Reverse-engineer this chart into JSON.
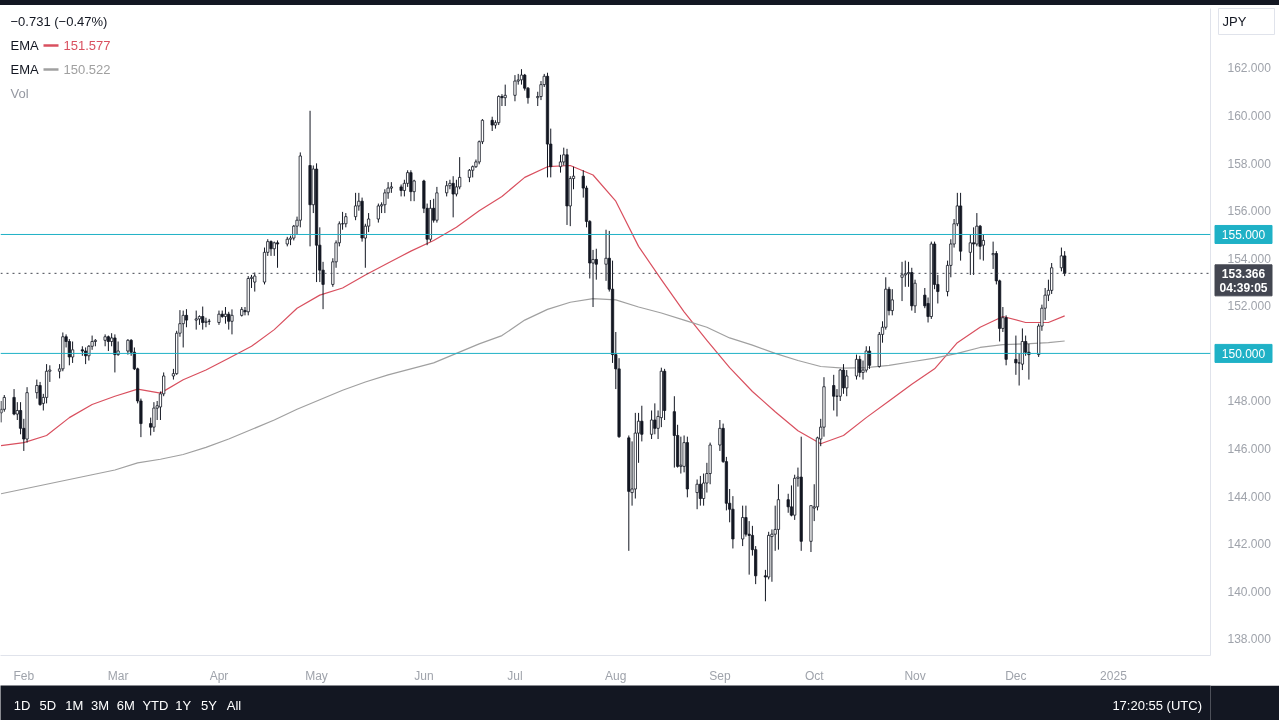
{
  "chart_data": {
    "type": "candlestick",
    "ylabel": "JPY",
    "x": [
      "2024-01-25",
      "2024-01-26",
      "2024-01-29",
      "2024-01-30",
      "2024-01-31",
      "2024-02-01",
      "2024-02-02",
      "2024-02-05",
      "2024-02-06",
      "2024-02-07",
      "2024-02-08",
      "2024-02-09",
      "2024-02-12",
      "2024-02-13",
      "2024-02-14",
      "2024-02-15",
      "2024-02-16",
      "2024-02-19",
      "2024-02-20",
      "2024-02-21",
      "2024-02-22",
      "2024-02-23",
      "2024-02-26",
      "2024-02-27",
      "2024-02-28",
      "2024-02-29",
      "2024-03-01",
      "2024-03-04",
      "2024-03-05",
      "2024-03-06",
      "2024-03-07",
      "2024-03-08",
      "2024-03-11",
      "2024-03-12",
      "2024-03-13",
      "2024-03-14",
      "2024-03-15",
      "2024-03-18",
      "2024-03-19",
      "2024-03-20",
      "2024-03-21",
      "2024-03-22",
      "2024-03-25",
      "2024-03-26",
      "2024-03-27",
      "2024-03-28",
      "2024-03-29",
      "2024-04-01",
      "2024-04-02",
      "2024-04-03",
      "2024-04-04",
      "2024-04-05",
      "2024-04-08",
      "2024-04-09",
      "2024-04-10",
      "2024-04-11",
      "2024-04-12",
      "2024-04-15",
      "2024-04-16",
      "2024-04-17",
      "2024-04-18",
      "2024-04-19",
      "2024-04-22",
      "2024-04-23",
      "2024-04-24",
      "2024-04-25",
      "2024-04-26",
      "2024-04-29",
      "2024-04-30",
      "2024-05-01",
      "2024-05-02",
      "2024-05-03",
      "2024-05-06",
      "2024-05-07",
      "2024-05-08",
      "2024-05-09",
      "2024-05-10",
      "2024-05-13",
      "2024-05-14",
      "2024-05-15",
      "2024-05-16",
      "2024-05-17",
      "2024-05-20",
      "2024-05-21",
      "2024-05-22",
      "2024-05-23",
      "2024-05-24",
      "2024-05-27",
      "2024-05-28",
      "2024-05-29",
      "2024-05-30",
      "2024-05-31",
      "2024-06-03",
      "2024-06-04",
      "2024-06-05",
      "2024-06-06",
      "2024-06-07",
      "2024-06-10",
      "2024-06-11",
      "2024-06-12",
      "2024-06-13",
      "2024-06-14",
      "2024-06-17",
      "2024-06-18",
      "2024-06-19",
      "2024-06-20",
      "2024-06-21",
      "2024-06-24",
      "2024-06-25",
      "2024-06-26",
      "2024-06-27",
      "2024-06-28",
      "2024-07-01",
      "2024-07-02",
      "2024-07-03",
      "2024-07-04",
      "2024-07-05",
      "2024-07-08",
      "2024-07-09",
      "2024-07-10",
      "2024-07-11",
      "2024-07-12",
      "2024-07-15",
      "2024-07-16",
      "2024-07-17",
      "2024-07-18",
      "2024-07-19",
      "2024-07-22",
      "2024-07-23",
      "2024-07-24",
      "2024-07-25",
      "2024-07-26",
      "2024-07-29",
      "2024-07-30",
      "2024-07-31",
      "2024-08-01",
      "2024-08-02",
      "2024-08-05",
      "2024-08-06",
      "2024-08-07",
      "2024-08-08",
      "2024-08-09",
      "2024-08-12",
      "2024-08-13",
      "2024-08-14",
      "2024-08-15",
      "2024-08-16",
      "2024-08-19",
      "2024-08-20",
      "2024-08-21",
      "2024-08-22",
      "2024-08-23",
      "2024-08-26",
      "2024-08-27",
      "2024-08-28",
      "2024-08-29",
      "2024-08-30",
      "2024-09-02",
      "2024-09-03",
      "2024-09-04",
      "2024-09-05",
      "2024-09-06",
      "2024-09-09",
      "2024-09-10",
      "2024-09-11",
      "2024-09-12",
      "2024-09-13",
      "2024-09-16",
      "2024-09-17",
      "2024-09-18",
      "2024-09-19",
      "2024-09-20",
      "2024-09-23",
      "2024-09-24",
      "2024-09-25",
      "2024-09-26",
      "2024-09-27",
      "2024-09-30",
      "2024-10-01",
      "2024-10-02",
      "2024-10-03",
      "2024-10-04",
      "2024-10-07",
      "2024-10-08",
      "2024-10-09",
      "2024-10-10",
      "2024-10-11",
      "2024-10-14",
      "2024-10-15",
      "2024-10-16",
      "2024-10-17",
      "2024-10-18",
      "2024-10-21",
      "2024-10-22",
      "2024-10-23",
      "2024-10-24",
      "2024-10-25",
      "2024-10-28",
      "2024-10-29",
      "2024-10-30",
      "2024-10-31",
      "2024-11-01",
      "2024-11-04",
      "2024-11-05",
      "2024-11-06",
      "2024-11-07",
      "2024-11-08",
      "2024-11-11",
      "2024-11-12",
      "2024-11-13",
      "2024-11-14",
      "2024-11-15",
      "2024-11-18",
      "2024-11-19",
      "2024-11-20",
      "2024-11-21",
      "2024-11-22",
      "2024-11-25",
      "2024-11-26",
      "2024-11-27",
      "2024-11-28",
      "2024-11-29",
      "2024-12-02",
      "2024-12-03",
      "2024-12-04",
      "2024-12-05",
      "2024-12-06",
      "2024-12-09",
      "2024-12-10",
      "2024-12-11",
      "2024-12-12",
      "2024-12-13",
      "2024-12-16",
      "2024-12-17"
    ],
    "ohlc": [
      [
        147.5,
        148.0,
        147.1,
        147.65
      ],
      [
        147.65,
        148.25,
        147.55,
        148.15
      ],
      [
        148.15,
        148.5,
        147.4,
        147.45
      ],
      [
        147.45,
        147.95,
        147.2,
        147.6
      ],
      [
        147.6,
        147.95,
        146.6,
        146.85
      ],
      [
        146.85,
        147.25,
        145.9,
        146.4
      ],
      [
        146.4,
        148.58,
        146.25,
        148.35
      ],
      [
        148.35,
        148.9,
        148.1,
        148.65
      ],
      [
        148.65,
        148.8,
        147.8,
        147.85
      ],
      [
        147.9,
        148.3,
        147.6,
        148.15
      ],
      [
        148.15,
        149.55,
        147.9,
        149.25
      ],
      [
        149.25,
        149.5,
        148.8,
        149.3
      ],
      [
        149.25,
        149.55,
        148.95,
        149.35
      ],
      [
        149.35,
        150.88,
        149.25,
        150.7
      ],
      [
        150.7,
        150.8,
        150.25,
        150.5
      ],
      [
        150.5,
        150.6,
        149.5,
        149.85
      ],
      [
        149.85,
        150.5,
        149.6,
        150.15
      ],
      [
        150.15,
        150.3,
        149.9,
        150.1
      ],
      [
        150.1,
        150.25,
        149.55,
        149.9
      ],
      [
        149.9,
        150.35,
        149.7,
        150.3
      ],
      [
        150.3,
        150.75,
        150.15,
        150.5
      ],
      [
        150.5,
        150.6,
        150.3,
        150.55
      ],
      [
        150.55,
        150.8,
        150.3,
        150.7
      ],
      [
        150.7,
        150.75,
        150.1,
        150.5
      ],
      [
        150.5,
        150.85,
        150.3,
        150.65
      ],
      [
        150.65,
        150.8,
        149.2,
        149.95
      ],
      [
        149.95,
        150.5,
        149.9,
        150.1
      ],
      [
        150.1,
        150.6,
        149.95,
        150.55
      ],
      [
        150.55,
        150.6,
        149.9,
        150.05
      ],
      [
        150.05,
        150.25,
        149.3,
        149.35
      ],
      [
        149.35,
        149.4,
        147.9,
        148.0
      ],
      [
        148.0,
        148.1,
        146.48,
        147.05
      ],
      [
        147.05,
        147.3,
        146.55,
        146.9
      ],
      [
        146.9,
        147.95,
        146.7,
        147.7
      ],
      [
        147.7,
        148.0,
        147.2,
        147.8
      ],
      [
        147.75,
        148.4,
        147.2,
        148.3
      ],
      [
        148.3,
        149.2,
        148.2,
        149.05
      ],
      [
        149.05,
        149.35,
        148.9,
        149.15
      ],
      [
        149.15,
        150.95,
        149.1,
        150.85
      ],
      [
        150.85,
        151.82,
        150.7,
        151.25
      ],
      [
        151.25,
        151.8,
        150.25,
        151.6
      ],
      [
        151.6,
        151.86,
        151.1,
        151.4
      ],
      [
        151.4,
        151.8,
        151.0,
        151.45
      ],
      [
        151.45,
        151.6,
        151.2,
        151.55
      ],
      [
        151.55,
        151.97,
        151.0,
        151.3
      ],
      [
        151.3,
        151.5,
        151.1,
        151.35
      ],
      [
        151.35,
        151.45,
        151.2,
        151.35
      ],
      [
        151.3,
        151.8,
        151.2,
        151.65
      ],
      [
        151.65,
        151.8,
        151.5,
        151.55
      ],
      [
        151.55,
        151.95,
        151.25,
        151.65
      ],
      [
        151.65,
        151.75,
        151.0,
        151.35
      ],
      [
        151.35,
        151.85,
        150.8,
        151.6
      ],
      [
        151.6,
        151.95,
        151.55,
        151.85
      ],
      [
        151.8,
        151.95,
        151.6,
        151.75
      ],
      [
        151.75,
        153.25,
        151.6,
        153.15
      ],
      [
        153.15,
        153.3,
        152.75,
        153.2
      ],
      [
        153.0,
        153.4,
        152.6,
        153.25
      ],
      [
        153.0,
        154.45,
        152.9,
        154.25
      ],
      [
        154.25,
        154.8,
        154.1,
        154.7
      ],
      [
        154.7,
        154.75,
        154.1,
        154.4
      ],
      [
        154.4,
        154.7,
        154.1,
        154.65
      ],
      [
        154.65,
        154.75,
        153.6,
        154.6
      ],
      [
        154.6,
        154.9,
        154.5,
        154.8
      ],
      [
        154.8,
        154.95,
        154.55,
        154.85
      ],
      [
        154.85,
        155.4,
        154.75,
        155.35
      ],
      [
        155.35,
        155.75,
        155.0,
        155.6
      ],
      [
        155.6,
        158.45,
        155.3,
        158.3
      ],
      [
        157.9,
        160.2,
        154.5,
        156.25
      ],
      [
        156.25,
        157.9,
        155.9,
        157.75
      ],
      [
        157.75,
        157.99,
        153.0,
        154.55
      ],
      [
        154.55,
        155.3,
        153.0,
        153.5
      ],
      [
        153.5,
        153.85,
        151.86,
        152.9
      ],
      [
        152.9,
        154.0,
        152.8,
        153.85
      ],
      [
        153.85,
        154.75,
        153.6,
        154.65
      ],
      [
        154.65,
        155.55,
        154.5,
        155.45
      ],
      [
        155.45,
        155.95,
        155.2,
        155.45
      ],
      [
        155.45,
        155.9,
        155.3,
        155.75
      ],
      [
        155.75,
        156.75,
        155.6,
        156.2
      ],
      [
        156.2,
        156.75,
        156.0,
        156.4
      ],
      [
        156.4,
        156.55,
        154.7,
        154.85
      ],
      [
        154.85,
        155.45,
        153.6,
        155.35
      ],
      [
        155.35,
        155.9,
        155.1,
        155.65
      ],
      [
        155.65,
        156.3,
        155.5,
        156.2
      ],
      [
        156.2,
        156.35,
        155.9,
        156.25
      ],
      [
        156.25,
        156.9,
        155.9,
        156.75
      ],
      [
        156.75,
        157.2,
        156.5,
        156.95
      ],
      [
        156.95,
        157.2,
        156.75,
        157.0
      ],
      [
        157.0,
        157.1,
        156.6,
        156.85
      ],
      [
        156.85,
        157.3,
        156.6,
        157.15
      ],
      [
        157.15,
        157.7,
        157.0,
        157.6
      ],
      [
        157.6,
        157.7,
        156.4,
        156.8
      ],
      [
        156.8,
        157.3,
        156.4,
        157.25
      ],
      [
        157.25,
        157.3,
        155.9,
        156.1
      ],
      [
        156.1,
        156.3,
        154.55,
        154.8
      ],
      [
        154.8,
        156.45,
        154.7,
        156.1
      ],
      [
        156.1,
        156.5,
        155.5,
        155.6
      ],
      [
        155.6,
        157.0,
        155.5,
        156.75
      ],
      [
        156.75,
        157.25,
        156.6,
        157.05
      ],
      [
        157.05,
        157.3,
        156.9,
        157.15
      ],
      [
        157.15,
        157.45,
        155.72,
        156.7
      ],
      [
        156.7,
        157.3,
        156.6,
        157.0
      ],
      [
        157.0,
        158.25,
        156.9,
        157.4
      ],
      [
        157.4,
        157.75,
        157.2,
        157.7
      ],
      [
        157.7,
        157.9,
        157.4,
        157.85
      ],
      [
        157.85,
        158.15,
        157.8,
        158.05
      ],
      [
        158.05,
        158.95,
        157.95,
        158.9
      ],
      [
        158.9,
        159.85,
        158.8,
        159.8
      ],
      [
        159.8,
        159.95,
        159.35,
        159.6
      ],
      [
        159.6,
        159.8,
        159.45,
        159.7
      ],
      [
        159.7,
        160.85,
        159.6,
        160.8
      ],
      [
        160.8,
        160.9,
        160.4,
        160.75
      ],
      [
        160.75,
        161.3,
        160.4,
        160.85
      ],
      [
        160.85,
        161.7,
        160.6,
        161.45
      ],
      [
        161.45,
        161.75,
        161.3,
        161.5
      ],
      [
        161.5,
        161.95,
        161.3,
        161.7
      ],
      [
        161.7,
        161.75,
        161.05,
        161.15
      ],
      [
        161.15,
        161.2,
        160.5,
        160.75
      ],
      [
        160.75,
        161.0,
        160.4,
        160.8
      ],
      [
        160.8,
        161.45,
        160.65,
        161.3
      ],
      [
        161.3,
        161.75,
        161.2,
        161.65
      ],
      [
        161.65,
        161.8,
        157.4,
        158.8
      ],
      [
        158.8,
        159.45,
        157.4,
        157.85
      ],
      [
        157.85,
        158.35,
        157.6,
        158.05
      ],
      [
        158.05,
        158.65,
        157.9,
        158.35
      ],
      [
        158.35,
        158.6,
        155.4,
        156.2
      ],
      [
        156.2,
        157.45,
        155.35,
        157.35
      ],
      [
        157.35,
        157.85,
        156.9,
        157.45
      ],
      [
        157.45,
        157.7,
        156.55,
        156.95
      ],
      [
        156.95,
        157.05,
        155.3,
        155.55
      ],
      [
        155.55,
        155.6,
        153.15,
        153.8
      ],
      [
        153.8,
        154.35,
        151.95,
        153.95
      ],
      [
        153.95,
        154.4,
        153.1,
        153.75
      ],
      [
        153.75,
        155.2,
        153.05,
        154.0
      ],
      [
        154.0,
        155.15,
        152.6,
        152.7
      ],
      [
        152.7,
        153.9,
        149.6,
        149.95
      ],
      [
        149.95,
        150.9,
        148.5,
        149.35
      ],
      [
        149.35,
        149.8,
        146.45,
        146.5
      ],
      [
        146.45,
        146.55,
        141.7,
        144.2
      ],
      [
        144.15,
        146.3,
        143.6,
        144.3
      ],
      [
        144.3,
        147.5,
        143.9,
        146.65
      ],
      [
        146.65,
        147.5,
        145.4,
        147.15
      ],
      [
        147.15,
        147.8,
        146.3,
        146.6
      ],
      [
        146.6,
        147.6,
        146.4,
        147.2
      ],
      [
        147.2,
        147.9,
        146.6,
        146.85
      ],
      [
        146.85,
        147.6,
        146.4,
        147.35
      ],
      [
        147.3,
        149.4,
        146.9,
        149.25
      ],
      [
        149.25,
        149.35,
        147.2,
        147.6
      ],
      [
        147.55,
        148.2,
        145.2,
        146.55
      ],
      [
        146.55,
        147.0,
        145.2,
        145.25
      ],
      [
        145.25,
        146.5,
        144.95,
        145.3
      ],
      [
        145.25,
        146.55,
        145.0,
        146.25
      ],
      [
        146.25,
        146.5,
        143.95,
        144.3
      ],
      [
        144.15,
        144.7,
        143.45,
        144.5
      ],
      [
        144.5,
        144.85,
        143.6,
        143.9
      ],
      [
        143.9,
        144.95,
        143.6,
        144.55
      ],
      [
        144.55,
        145.4,
        144.15,
        144.95
      ],
      [
        144.95,
        146.25,
        144.5,
        146.15
      ],
      [
        146.15,
        147.2,
        145.9,
        146.85
      ],
      [
        146.85,
        147.05,
        145.4,
        145.45
      ],
      [
        145.45,
        145.65,
        143.4,
        143.7
      ],
      [
        143.7,
        144.3,
        142.9,
        143.45
      ],
      [
        143.45,
        144.0,
        141.8,
        142.2
      ],
      [
        142.2,
        143.6,
        141.9,
        143.1
      ],
      [
        143.1,
        143.6,
        142.3,
        142.4
      ],
      [
        142.4,
        142.95,
        140.7,
        142.35
      ],
      [
        142.35,
        142.75,
        141.5,
        141.75
      ],
      [
        141.75,
        141.9,
        140.3,
        140.65
      ],
      [
        140.65,
        140.9,
        139.58,
        140.6
      ],
      [
        140.6,
        142.5,
        140.5,
        142.35
      ],
      [
        142.3,
        142.6,
        140.4,
        142.4
      ],
      [
        142.4,
        143.6,
        141.7,
        142.6
      ],
      [
        142.6,
        144.5,
        141.75,
        143.85
      ],
      [
        143.85,
        144.1,
        143.3,
        143.55
      ],
      [
        143.55,
        144.45,
        143.15,
        143.2
      ],
      [
        143.2,
        144.9,
        143.0,
        144.75
      ],
      [
        144.75,
        145.2,
        144.4,
        144.8
      ],
      [
        144.8,
        146.5,
        141.7,
        142.1
      ],
      [
        142.1,
        143.6,
        141.65,
        143.6
      ],
      [
        143.5,
        144.5,
        142.95,
        143.55
      ],
      [
        143.55,
        146.5,
        143.4,
        146.45
      ],
      [
        146.4,
        147.25,
        146.1,
        146.9
      ],
      [
        146.9,
        149.0,
        146.5,
        148.6
      ],
      [
        148.65,
        149.1,
        147.6,
        148.2
      ],
      [
        148.2,
        148.5,
        147.35,
        148.2
      ],
      [
        148.2,
        149.35,
        148.0,
        149.3
      ],
      [
        149.3,
        149.55,
        148.3,
        148.55
      ],
      [
        148.55,
        149.3,
        148.2,
        149.05
      ],
      [
        149.05,
        149.95,
        148.9,
        149.75
      ],
      [
        149.75,
        149.9,
        149.0,
        149.2
      ],
      [
        149.2,
        149.7,
        148.9,
        149.3
      ],
      [
        149.3,
        150.3,
        149.2,
        150.1
      ],
      [
        150.1,
        150.3,
        149.35,
        149.5
      ],
      [
        149.45,
        150.9,
        149.4,
        150.8
      ],
      [
        150.8,
        151.35,
        150.45,
        151.1
      ],
      [
        151.1,
        153.2,
        151.0,
        152.7
      ],
      [
        152.7,
        152.8,
        151.6,
        151.8
      ],
      [
        151.8,
        152.7,
        151.6,
        152.25
      ],
      [
        153.2,
        153.85,
        152.2,
        153.3
      ],
      [
        153.3,
        153.9,
        152.8,
        153.35
      ],
      [
        153.35,
        153.85,
        152.8,
        153.4
      ],
      [
        153.4,
        153.6,
        151.8,
        152.0
      ],
      [
        152.0,
        153.1,
        151.7,
        152.95
      ],
      [
        152.45,
        152.75,
        151.9,
        152.0
      ],
      [
        152.1,
        152.35,
        151.3,
        151.55
      ],
      [
        151.55,
        154.7,
        151.45,
        154.6
      ],
      [
        154.6,
        154.7,
        152.7,
        152.9
      ],
      [
        152.9,
        153.3,
        152.1,
        152.6
      ],
      [
        152.6,
        153.9,
        152.4,
        153.7
      ],
      [
        153.7,
        154.8,
        153.2,
        154.6
      ],
      [
        154.6,
        155.65,
        154.45,
        155.45
      ],
      [
        155.45,
        156.75,
        155.35,
        156.2
      ],
      [
        156.2,
        156.75,
        153.9,
        154.3
      ],
      [
        154.25,
        155.0,
        153.3,
        154.65
      ],
      [
        154.65,
        155.3,
        153.3,
        154.6
      ],
      [
        154.6,
        155.9,
        154.5,
        155.35
      ],
      [
        155.35,
        155.4,
        153.95,
        154.5
      ],
      [
        154.55,
        155.0,
        153.9,
        154.75
      ],
      [
        154.15,
        154.7,
        153.55,
        154.2
      ],
      [
        154.2,
        154.3,
        152.9,
        153.05
      ],
      [
        153.05,
        153.1,
        150.5,
        151.05
      ],
      [
        151.05,
        151.95,
        150.9,
        151.5
      ],
      [
        151.5,
        151.6,
        149.5,
        149.75
      ],
      [
        149.75,
        150.75,
        149.1,
        149.6
      ],
      [
        149.6,
        150.0,
        148.65,
        149.6
      ],
      [
        149.55,
        151.05,
        149.3,
        150.5
      ],
      [
        150.5,
        150.75,
        149.9,
        150.05
      ],
      [
        150.05,
        150.4,
        148.9,
        149.95
      ],
      [
        149.95,
        151.25,
        149.85,
        151.15
      ],
      [
        151.15,
        152.05,
        150.95,
        151.9
      ],
      [
        151.9,
        152.75,
        151.4,
        152.45
      ],
      [
        152.45,
        153.1,
        152.2,
        152.65
      ],
      [
        152.65,
        153.8,
        152.5,
        153.6
      ],
      [
        153.6,
        154.45,
        153.45,
        154.1
      ],
      [
        154.1,
        154.3,
        153.25,
        153.366
      ]
    ],
    "series": [
      {
        "name": "EMA",
        "type": "line",
        "color": "#d9505f",
        "x": [
          "2024-01-25",
          "2024-02-01",
          "2024-02-08",
          "2024-02-15",
          "2024-02-22",
          "2024-02-29",
          "2024-03-07",
          "2024-03-14",
          "2024-03-21",
          "2024-03-28",
          "2024-04-04",
          "2024-04-11",
          "2024-04-18",
          "2024-04-25",
          "2024-05-02",
          "2024-05-09",
          "2024-05-16",
          "2024-05-23",
          "2024-05-30",
          "2024-06-06",
          "2024-06-13",
          "2024-06-20",
          "2024-06-27",
          "2024-07-04",
          "2024-07-11",
          "2024-07-18",
          "2024-07-25",
          "2024-08-01",
          "2024-08-08",
          "2024-08-15",
          "2024-08-22",
          "2024-08-29",
          "2024-09-05",
          "2024-09-12",
          "2024-09-19",
          "2024-09-26",
          "2024-10-03",
          "2024-10-10",
          "2024-10-17",
          "2024-10-24",
          "2024-10-31",
          "2024-11-07",
          "2024-11-14",
          "2024-11-21",
          "2024-11-28",
          "2024-12-05",
          "2024-12-12",
          "2024-12-17"
        ],
        "values": [
          146.12,
          146.25,
          146.55,
          147.3,
          147.85,
          148.2,
          148.5,
          148.33,
          148.89,
          149.3,
          149.8,
          150.3,
          151.0,
          151.9,
          152.45,
          152.75,
          153.3,
          153.8,
          154.3,
          154.75,
          155.3,
          156.0,
          156.6,
          157.4,
          157.85,
          157.9,
          157.5,
          156.4,
          154.5,
          153.1,
          151.75,
          150.55,
          149.4,
          148.4,
          147.55,
          146.75,
          146.2,
          146.55,
          147.3,
          148.0,
          148.7,
          149.35,
          150.45,
          151.1,
          151.55,
          151.3,
          151.3,
          151.577
        ]
      },
      {
        "name": "EMA",
        "type": "line",
        "color": "#a0a0a0",
        "x": [
          "2024-01-25",
          "2024-02-01",
          "2024-02-08",
          "2024-02-15",
          "2024-02-22",
          "2024-02-29",
          "2024-03-07",
          "2024-03-14",
          "2024-03-21",
          "2024-03-28",
          "2024-04-04",
          "2024-04-11",
          "2024-04-18",
          "2024-04-25",
          "2024-05-02",
          "2024-05-09",
          "2024-05-16",
          "2024-05-23",
          "2024-05-30",
          "2024-06-06",
          "2024-06-13",
          "2024-06-20",
          "2024-06-27",
          "2024-07-04",
          "2024-07-11",
          "2024-07-18",
          "2024-07-25",
          "2024-08-01",
          "2024-08-08",
          "2024-08-15",
          "2024-08-22",
          "2024-08-29",
          "2024-09-05",
          "2024-09-12",
          "2024-09-19",
          "2024-09-26",
          "2024-10-03",
          "2024-10-10",
          "2024-10-17",
          "2024-10-24",
          "2024-10-31",
          "2024-11-07",
          "2024-11-14",
          "2024-11-21",
          "2024-11-28",
          "2024-12-05",
          "2024-12-12",
          "2024-12-17"
        ],
        "values": [
          144.1,
          144.3,
          144.5,
          144.7,
          144.9,
          145.1,
          145.4,
          145.55,
          145.75,
          146.05,
          146.4,
          146.8,
          147.2,
          147.65,
          148.05,
          148.45,
          148.8,
          149.1,
          149.35,
          149.6,
          150.0,
          150.4,
          150.75,
          151.4,
          151.85,
          152.15,
          152.3,
          152.25,
          151.95,
          151.7,
          151.4,
          151.1,
          150.65,
          150.35,
          150.0,
          149.7,
          149.45,
          149.38,
          149.4,
          149.5,
          149.65,
          149.8,
          150.0,
          150.25,
          150.37,
          150.4,
          150.45,
          150.522
        ]
      }
    ],
    "xlim": [
      "2024-01-24T20:00",
      "2025-01-30T20:00"
    ],
    "xticks": [
      {
        "value": "2024-02-01",
        "label": "Feb"
      },
      {
        "value": "2024-03-01",
        "label": "Mar"
      },
      {
        "value": "2024-04-01",
        "label": "Apr"
      },
      {
        "value": "2024-05-01",
        "label": "May"
      },
      {
        "value": "2024-06-03",
        "label": "Jun"
      },
      {
        "value": "2024-07-01",
        "label": "Jul"
      },
      {
        "value": "2024-08-01",
        "label": "Aug"
      },
      {
        "value": "2024-09-02",
        "label": "Sep"
      },
      {
        "value": "2024-10-01",
        "label": "Oct"
      },
      {
        "value": "2024-11-01",
        "label": "Nov"
      },
      {
        "value": "2024-12-02",
        "label": "Dec"
      },
      {
        "value": "2025-01-01",
        "label": "2025"
      }
    ],
    "ylim": [
      137.3,
      164.5
    ],
    "yticks": [
      {
        "value": 138,
        "label": "138.000"
      },
      {
        "value": 140,
        "label": "140.000"
      },
      {
        "value": 142,
        "label": "142.000"
      },
      {
        "value": 144,
        "label": "144.000"
      },
      {
        "value": 146,
        "label": "146.000"
      },
      {
        "value": 148,
        "label": "148.000"
      },
      {
        "value": 152,
        "label": "152.000"
      },
      {
        "value": 154,
        "label": "154.000"
      },
      {
        "value": 156,
        "label": "156.000"
      },
      {
        "value": 158,
        "label": "158.000"
      },
      {
        "value": 160,
        "label": "160.000"
      },
      {
        "value": 162,
        "label": "162.000"
      }
    ],
    "ref_lines": [
      {
        "axis": "y",
        "value": 155,
        "label": "155.000",
        "color": "#1fb1c6",
        "line_style": "solid"
      },
      {
        "axis": "y",
        "value": 150,
        "label": "150.000",
        "color": "#1fb1c6",
        "line_style": "solid"
      },
      {
        "axis": "y",
        "value": 153.366,
        "label": "153.366",
        "color": "#434651",
        "line_style": "dotted"
      }
    ],
    "annotations": [
      "−0.731 (−0.47%)",
      "151.577",
      "150.522",
      "Vol",
      "04:39:05",
      "1D",
      "5D",
      "1M",
      "3M",
      "6M",
      "YTD",
      "1Y",
      "5Y",
      "All",
      "17:20:55 (UTC)"
    ],
    "legend": "top left",
    "grid": false
  }
}
